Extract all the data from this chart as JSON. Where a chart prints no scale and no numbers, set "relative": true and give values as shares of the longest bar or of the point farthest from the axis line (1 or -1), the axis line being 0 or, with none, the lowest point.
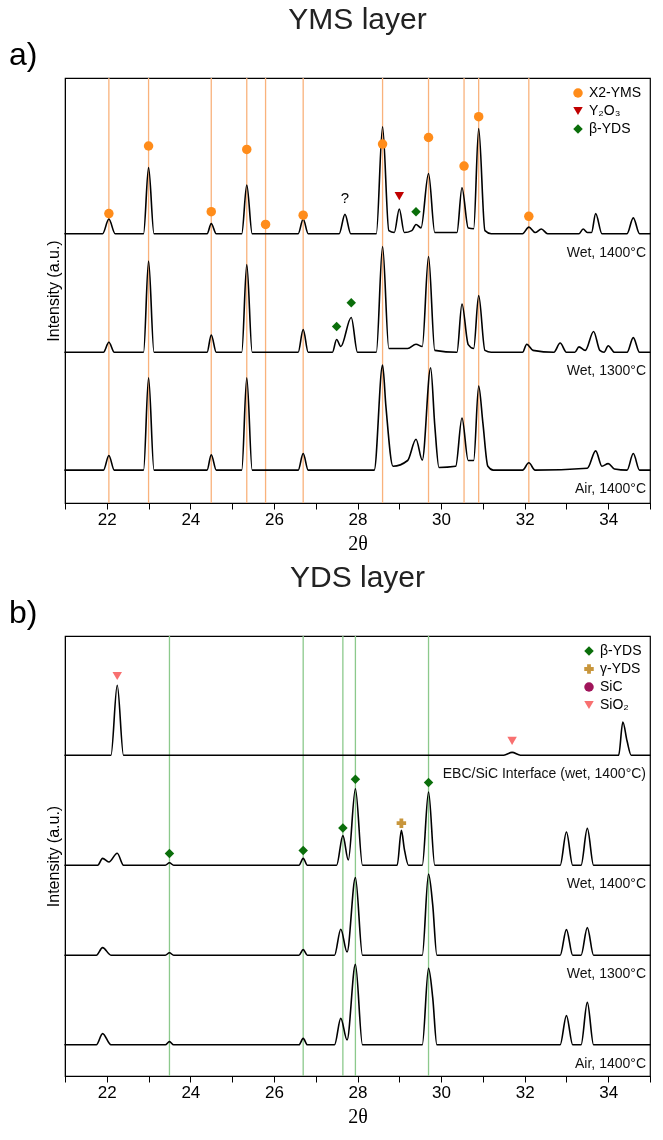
{
  "chart_data": [
    {
      "type": "line",
      "title": "YMS layer",
      "xlabel": "2θ",
      "ylabel": "Intensity (a.u.)",
      "relative": true,
      "legend": "top right",
      "xlim": [
        21,
        35
      ],
      "xticks": [
        {
          "value": 21,
          "label": null
        },
        22,
        {
          "value": 23,
          "label": null
        },
        24,
        {
          "value": 25,
          "label": null
        },
        26,
        {
          "value": 27,
          "label": null
        },
        28,
        {
          "value": 29,
          "label": null
        },
        30,
        {
          "value": 31,
          "label": null
        },
        32,
        {
          "value": 33,
          "label": null
        },
        34,
        {
          "value": 35,
          "label": null
        }
      ],
      "annotations": [
        "a)",
        {
          "text": "?",
          "x": 27.7,
          "y": 0.747
        }
      ],
      "ref_lines": [
        {
          "axis": "x",
          "value": 22.05,
          "color": "#f9b27c"
        },
        {
          "axis": "x",
          "value": 23.0,
          "color": "#f9b27c"
        },
        {
          "axis": "x",
          "value": 24.5,
          "color": "#f9b27c"
        },
        {
          "axis": "x",
          "value": 25.35,
          "color": "#f9b27c"
        },
        {
          "axis": "x",
          "value": 25.8,
          "color": "#f9b27c"
        },
        {
          "axis": "x",
          "value": 26.7,
          "color": "#f9b27c"
        },
        {
          "axis": "x",
          "value": 28.6,
          "color": "#f9b27c"
        },
        {
          "axis": "x",
          "value": 29.7,
          "color": "#f9b27c"
        },
        {
          "axis": "x",
          "value": 30.55,
          "color": "#f9b27c"
        },
        {
          "axis": "x",
          "value": 30.9,
          "color": "#f9b27c"
        },
        {
          "axis": "x",
          "value": 32.1,
          "color": "#f9b27c"
        }
      ],
      "series": [
        {
          "name": "Wet, 1400°C",
          "type": "line",
          "color": "#000000",
          "x": [
            21,
            21.9,
            22.05,
            22.2,
            22.88,
            23.0,
            23.13,
            24.4,
            24.5,
            24.62,
            25.23,
            25.35,
            25.48,
            26.58,
            26.7,
            26.82,
            27.56,
            27.7,
            27.84,
            28.45,
            28.6,
            28.75,
            28.88,
            29.0,
            29.12,
            29.3,
            29.4,
            29.52,
            29.7,
            29.85,
            30.38,
            30.5,
            30.65,
            30.78,
            30.9,
            31.05,
            31.2,
            31.95,
            32.1,
            32.25,
            32.4,
            32.55,
            33.3,
            33.4,
            33.5,
            33.6,
            33.7,
            33.85,
            34.45,
            34.6,
            34.75,
            35
          ],
          "values": [
            0.697,
            0.697,
            0.735,
            0.697,
            0.697,
            0.868,
            0.697,
            0.697,
            0.723,
            0.697,
            0.697,
            0.823,
            0.697,
            0.697,
            0.735,
            0.697,
            0.697,
            0.747,
            0.697,
            0.697,
            0.974,
            0.705,
            0.7,
            0.761,
            0.7,
            0.705,
            0.721,
            0.712,
            0.853,
            0.7,
            0.7,
            0.816,
            0.712,
            0.71,
            0.969,
            0.705,
            0.697,
            0.697,
            0.714,
            0.7,
            0.709,
            0.697,
            0.697,
            0.709,
            0.7,
            0.7,
            0.749,
            0.697,
            0.697,
            0.738,
            0.697,
            0.697
          ]
        },
        {
          "name": "Wet, 1300°C",
          "type": "line",
          "color": "#000000",
          "x": [
            21,
            21.92,
            22.05,
            22.18,
            22.88,
            23.0,
            23.13,
            24.4,
            24.5,
            24.62,
            25.23,
            25.35,
            25.48,
            26.58,
            26.7,
            26.82,
            27.4,
            27.5,
            27.6,
            27.85,
            28.0,
            28.45,
            28.6,
            28.75,
            29.2,
            29.4,
            29.55,
            29.7,
            29.85,
            30.38,
            30.5,
            30.65,
            30.78,
            30.9,
            31.05,
            31.2,
            31.95,
            32.05,
            32.2,
            32.7,
            32.85,
            33.0,
            33.2,
            33.3,
            33.45,
            33.65,
            33.8,
            33.9,
            34.0,
            34.15,
            34.45,
            34.6,
            34.75,
            35
          ],
          "values": [
            0.39,
            0.39,
            0.416,
            0.39,
            0.39,
            0.626,
            0.39,
            0.39,
            0.435,
            0.39,
            0.39,
            0.617,
            0.39,
            0.39,
            0.449,
            0.39,
            0.39,
            0.423,
            0.405,
            0.48,
            0.39,
            0.39,
            0.664,
            0.4,
            0.4,
            0.411,
            0.405,
            0.638,
            0.395,
            0.39,
            0.515,
            0.41,
            0.4,
            0.537,
            0.395,
            0.39,
            0.39,
            0.411,
            0.395,
            0.39,
            0.414,
            0.39,
            0.39,
            0.404,
            0.395,
            0.444,
            0.395,
            0.39,
            0.407,
            0.39,
            0.39,
            0.428,
            0.39,
            0.39
          ]
        },
        {
          "name": "Air, 1400°C",
          "type": "line",
          "color": "#000000",
          "x": [
            21,
            21.92,
            22.05,
            22.18,
            22.88,
            23.0,
            23.13,
            24.4,
            24.5,
            24.62,
            25.23,
            25.35,
            25.48,
            26.58,
            26.7,
            26.82,
            28.4,
            28.6,
            28.68,
            28.85,
            29.2,
            29.4,
            29.55,
            29.75,
            29.85,
            29.95,
            30.35,
            30.5,
            30.65,
            30.78,
            30.9,
            31.0,
            31.12,
            31.25,
            31.95,
            32.1,
            32.25,
            33.5,
            33.7,
            33.85,
            34.0,
            34.15,
            34.45,
            34.6,
            34.75,
            35
          ],
          "values": [
            0.085,
            0.085,
            0.123,
            0.085,
            0.085,
            0.324,
            0.085,
            0.085,
            0.125,
            0.085,
            0.085,
            0.324,
            0.085,
            0.085,
            0.128,
            0.085,
            0.085,
            0.357,
            0.25,
            0.095,
            0.11,
            0.165,
            0.111,
            0.35,
            0.2,
            0.092,
            0.095,
            0.22,
            0.11,
            0.11,
            0.303,
            0.208,
            0.095,
            0.085,
            0.085,
            0.104,
            0.085,
            0.09,
            0.135,
            0.095,
            0.102,
            0.088,
            0.085,
            0.128,
            0.085,
            0.085
          ]
        },
        {
          "name": "X2-YMS",
          "type": "scatter",
          "marker": "circle",
          "color": "#ff8c1a",
          "x": [
            22.05,
            23.0,
            24.5,
            25.35,
            25.8,
            26.7,
            28.6,
            29.7,
            30.55,
            30.9,
            32.1
          ],
          "values": [
            0.749,
            0.924,
            0.754,
            0.915,
            0.721,
            0.745,
            0.929,
            0.946,
            0.872,
            1.0,
            0.742
          ]
        },
        {
          "name": "Y₂O₃",
          "type": "scatter",
          "marker": "triangle",
          "color": "#c00000",
          "x": [
            29.0
          ],
          "values": [
            0.794
          ]
        },
        {
          "name": "β-YDS",
          "type": "scatter",
          "marker": "diamond",
          "color": "#0a6e0a",
          "x": [
            29.4,
            27.5,
            27.85
          ],
          "values": [
            0.754,
            0.457,
            0.518
          ]
        }
      ]
    },
    {
      "type": "line",
      "title": "YDS layer",
      "xlabel": "2θ",
      "ylabel": "Intensity (a.u.)",
      "relative": true,
      "legend": "top right",
      "xlim": [
        21,
        35
      ],
      "xticks": [
        {
          "value": 21,
          "label": null
        },
        22,
        {
          "value": 23,
          "label": null
        },
        24,
        {
          "value": 25,
          "label": null
        },
        26,
        {
          "value": 27,
          "label": null
        },
        28,
        {
          "value": 29,
          "label": null
        },
        30,
        {
          "value": 31,
          "label": null
        },
        32,
        {
          "value": 33,
          "label": null
        },
        34,
        {
          "value": 35,
          "label": null
        }
      ],
      "annotations": [
        "b)"
      ],
      "ref_lines": [
        {
          "axis": "x",
          "value": 23.5,
          "color": "#8cc98c"
        },
        {
          "axis": "x",
          "value": 26.7,
          "color": "#8cc98c"
        },
        {
          "axis": "x",
          "value": 27.65,
          "color": "#8cc98c"
        },
        {
          "axis": "x",
          "value": 27.95,
          "color": "#8cc98c"
        },
        {
          "axis": "x",
          "value": 29.7,
          "color": "#8cc98c"
        }
      ],
      "series": [
        {
          "name": "EBC/SiC Interface (wet, 1400°C)",
          "type": "line",
          "color": "#000000",
          "x": [
            21,
            22.1,
            22.25,
            22.4,
            31.5,
            31.7,
            31.9,
            34.25,
            34.35,
            34.45,
            34.55,
            35
          ],
          "values": [
            0.802,
            0.802,
            0.977,
            0.802,
            0.802,
            0.809,
            0.802,
            0.802,
            0.885,
            0.838,
            0.802,
            0.802
          ]
        },
        {
          "name": "Wet, 1400°C",
          "type": "line",
          "color": "#000000",
          "x": [
            21,
            21.78,
            21.9,
            22.05,
            22.25,
            22.4,
            23.4,
            23.5,
            23.6,
            26.6,
            26.7,
            26.8,
            27.5,
            27.65,
            27.78,
            27.95,
            28.12,
            28.95,
            29.05,
            29.12,
            29.22,
            29.55,
            29.7,
            29.85,
            32.85,
            33.0,
            33.15,
            33.35,
            33.5,
            33.65,
            35
          ],
          "values": [
            0.527,
            0.527,
            0.544,
            0.535,
            0.557,
            0.527,
            0.527,
            0.533,
            0.527,
            0.527,
            0.544,
            0.527,
            0.527,
            0.601,
            0.54,
            0.718,
            0.527,
            0.527,
            0.614,
            0.568,
            0.527,
            0.527,
            0.71,
            0.527,
            0.527,
            0.61,
            0.527,
            0.527,
            0.619,
            0.527,
            0.527
          ]
        },
        {
          "name": "Wet, 1300°C",
          "type": "line",
          "color": "#000000",
          "x": [
            21,
            21.75,
            21.9,
            22.1,
            23.4,
            23.5,
            23.6,
            26.6,
            26.7,
            26.8,
            27.45,
            27.6,
            27.75,
            27.95,
            28.12,
            29.55,
            29.7,
            29.8,
            29.9,
            32.85,
            33.0,
            33.15,
            33.35,
            33.5,
            33.65,
            35
          ],
          "values": [
            0.302,
            0.302,
            0.321,
            0.302,
            0.302,
            0.308,
            0.302,
            0.302,
            0.316,
            0.302,
            0.302,
            0.367,
            0.31,
            0.496,
            0.302,
            0.302,
            0.505,
            0.428,
            0.302,
            0.302,
            0.366,
            0.302,
            0.302,
            0.371,
            0.302,
            0.302
          ]
        },
        {
          "name": "Air, 1400°C",
          "type": "line",
          "color": "#000000",
          "x": [
            21,
            21.75,
            21.9,
            22.1,
            23.4,
            23.5,
            23.6,
            26.6,
            26.7,
            26.8,
            27.45,
            27.6,
            27.75,
            27.95,
            28.12,
            29.55,
            29.7,
            29.8,
            29.9,
            32.85,
            33.0,
            33.15,
            33.35,
            33.5,
            33.65,
            35
          ],
          "values": [
            0.078,
            0.078,
            0.106,
            0.078,
            0.078,
            0.086,
            0.078,
            0.078,
            0.094,
            0.078,
            0.078,
            0.144,
            0.09,
            0.279,
            0.078,
            0.078,
            0.269,
            0.196,
            0.078,
            0.078,
            0.151,
            0.078,
            0.078,
            0.184,
            0.078,
            0.078
          ]
        },
        {
          "name": "β-YDS",
          "type": "scatter",
          "marker": "diamond",
          "color": "#0a6e0a",
          "x": [
            23.5,
            26.7,
            27.65,
            27.95,
            29.7
          ],
          "values": [
            0.556,
            0.564,
            0.62,
            0.742,
            0.734
          ]
        },
        {
          "name": "γ-YDS",
          "type": "scatter",
          "marker": "cross",
          "color": "#c8963c",
          "x": [
            29.05
          ],
          "values": [
            0.632
          ]
        },
        {
          "name": "SiC",
          "type": "scatter",
          "marker": "circle",
          "color": "#a0145a"
        },
        {
          "name": "SiO₂",
          "type": "scatter",
          "marker": "triangle",
          "color": "#f87070",
          "x": [
            22.25,
            31.7
          ],
          "values": [
            1.0,
            0.838
          ]
        }
      ]
    }
  ]
}
